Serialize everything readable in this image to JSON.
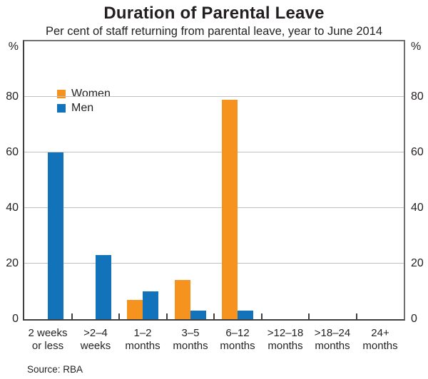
{
  "title": "Duration of Parental Leave",
  "subtitle": "Per cent of staff returning from parental leave, year to June 2014",
  "source": "Source: RBA",
  "axis": {
    "unit_left": "%",
    "unit_right": "%",
    "grid_color": "#BEC0C2"
  },
  "chart_data": {
    "type": "bar",
    "title": "Duration of Parental Leave",
    "subtitle": "Per cent of staff returning from parental leave, year to June 2014",
    "categories": [
      "2 weeks or less",
      ">2–4 weeks",
      "1–2 months",
      "3–5 months",
      "6–12 months",
      ">12–18 months",
      ">18–24 months",
      "24+ months"
    ],
    "category_label_lines": [
      [
        "2 weeks",
        "or less"
      ],
      [
        ">2–4",
        "weeks"
      ],
      [
        "1–2",
        "months"
      ],
      [
        "3–5",
        "months"
      ],
      [
        "6–12",
        "months"
      ],
      [
        ">12–18",
        "months"
      ],
      [
        ">18–24",
        "months"
      ],
      [
        "24+",
        "months"
      ]
    ],
    "series": [
      {
        "name": "Women",
        "color": "#F6921E",
        "values": [
          0,
          0,
          7,
          14,
          79,
          0,
          0,
          0
        ]
      },
      {
        "name": "Men",
        "color": "#1273BA",
        "values": [
          60,
          23,
          10,
          3,
          3,
          0,
          0,
          0
        ]
      }
    ],
    "ylabel": "%",
    "xlabel": "",
    "ylim": [
      0,
      100
    ],
    "yticks": [
      0,
      20,
      40,
      60,
      80
    ],
    "grid": true,
    "legend_position": "top-left",
    "source": "Source: RBA"
  }
}
